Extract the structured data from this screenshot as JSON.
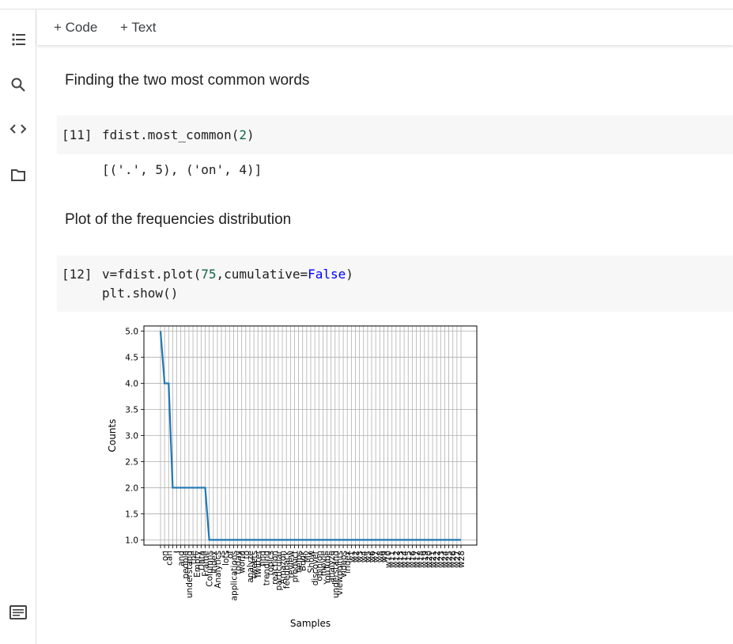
{
  "toolbar": {
    "add_code": "+ Code",
    "add_text": "+ Text"
  },
  "sidebar": {
    "icons": [
      "table-of-contents-icon",
      "search-icon",
      "code-snippets-icon",
      "files-icon",
      "terminal-icon"
    ]
  },
  "cells": {
    "heading1": "Finding the two most common words",
    "cell11": {
      "exec": "[11]",
      "code": "fdist.most_common(",
      "arg": "2",
      "close": ")",
      "output": "[('.', 5), ('on', 4)]"
    },
    "heading2": "Plot of the frequencies distribution",
    "cell12": {
      "exec": "[12]",
      "line1_a": "v=fdist.plot(",
      "line1_num": "75",
      "line1_b": ",cumulative=",
      "line1_kw": "False",
      "line1_c": ")",
      "line2": "plt.show()"
    }
  },
  "chart_data": {
    "type": "line",
    "xlabel": "Samples",
    "ylabel": "Counts",
    "ylim": [
      0.9,
      5.1
    ],
    "yticks": [
      "1.0",
      "1.5",
      "2.0",
      "2.5",
      "3.0",
      "3.5",
      "4.0",
      "4.5",
      "5.0"
    ],
    "grid": true,
    "line_color": "#1f77b4",
    "categories": [
      ".",
      "on",
      "can",
      ",",
      "I",
      "and",
      "people",
      "understand",
      "the",
      "Empty",
      "Data",
      "Frame",
      "Columns",
      "Index",
      "Analytics",
      "is",
      "lots",
      "of",
      "applications",
      "today",
      "world",
      "to",
      "analyze",
      "tweets",
      "Twitter",
      "find",
      "trending",
      "topics",
      "reaction",
      "particular",
      "Amazon",
      "feedback",
      "review",
      "product",
      "helps",
      "Book",
      "My",
      "Show",
      "discover",
      "opinion",
      "movie",
      "YouTube",
      "analyze",
      "understand",
      "viewpoints",
      "videos",
      "index",
      "w1",
      "w2",
      "w3",
      "w4",
      "w5",
      "w6",
      "w7",
      "w8",
      "w9",
      "w10",
      "w11",
      "w12",
      "w13",
      "w14",
      "w15",
      "w16",
      "w17",
      "w18",
      "w19",
      "w20",
      "w21",
      "w22",
      "w23",
      "w24",
      "w25",
      "w26",
      "w27",
      "w28"
    ],
    "values": [
      5,
      4,
      4,
      2,
      2,
      2,
      2,
      2,
      2,
      2,
      2,
      2,
      1,
      1,
      1,
      1,
      1,
      1,
      1,
      1,
      1,
      1,
      1,
      1,
      1,
      1,
      1,
      1,
      1,
      1,
      1,
      1,
      1,
      1,
      1,
      1,
      1,
      1,
      1,
      1,
      1,
      1,
      1,
      1,
      1,
      1,
      1,
      1,
      1,
      1,
      1,
      1,
      1,
      1,
      1,
      1,
      1,
      1,
      1,
      1,
      1,
      1,
      1,
      1,
      1,
      1,
      1,
      1,
      1,
      1,
      1,
      1,
      1,
      1,
      1
    ]
  }
}
